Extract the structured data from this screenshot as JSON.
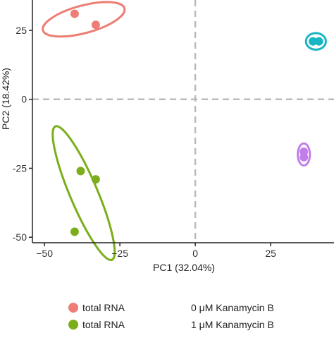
{
  "chart_data": {
    "type": "scatter",
    "title": "",
    "xlabel": "PC1 (32.04%)",
    "ylabel": "PC2 (18.42%)",
    "xlim": [
      -54,
      46
    ],
    "ylim": [
      -52,
      36
    ],
    "xticks": [
      -50,
      -25,
      0,
      25
    ],
    "yticks": [
      -50,
      -25,
      0,
      25
    ],
    "x_tick_labels": [
      "−50",
      "−25",
      "0",
      "25"
    ],
    "y_tick_labels": [
      "-50",
      "-25",
      "0",
      "25"
    ],
    "reference_lines": {
      "x": 0,
      "y": 0,
      "style": "dashed",
      "color": "#bbbbbb"
    },
    "grid": false,
    "legend_position": "bottom",
    "series": [
      {
        "name": "total RNA",
        "condition": "0 μM Kanamycin B",
        "color": "#ee7d74",
        "points": [
          [
            -40,
            31
          ],
          [
            -33,
            27
          ]
        ],
        "ellipse": {
          "cx": -37,
          "cy": 29,
          "rx": 14,
          "ry": 5,
          "angle": 15
        }
      },
      {
        "name": "total RNA",
        "condition": "1 μM Kanamycin B",
        "color": "#7cae1b",
        "points": [
          [
            -38,
            -26
          ],
          [
            -33,
            -29
          ],
          [
            -40,
            -48
          ]
        ],
        "ellipse": {
          "cx": -37,
          "cy": -34,
          "rx": 24,
          "ry": 5,
          "angle": -67
        }
      },
      {
        "name": "",
        "condition": "",
        "color": "#19b5c5",
        "points": [
          [
            39,
            21
          ],
          [
            41,
            21
          ]
        ],
        "ellipse": {
          "cx": 40,
          "cy": 21,
          "rx": 3.3,
          "ry": 3,
          "angle": 0
        }
      },
      {
        "name": "",
        "condition": "",
        "color": "#c17dea",
        "points": [
          [
            36,
            -19
          ],
          [
            36,
            -21
          ]
        ],
        "ellipse": {
          "cx": 36,
          "cy": -20,
          "rx": 2,
          "ry": 4,
          "angle": 0
        }
      }
    ],
    "legend": [
      {
        "label": "total RNA",
        "condition": "0 μM Kanamycin B",
        "color": "#ee7d74"
      },
      {
        "label": "total RNA",
        "condition": "1 μM Kanamycin B",
        "color": "#7cae1b"
      }
    ]
  }
}
